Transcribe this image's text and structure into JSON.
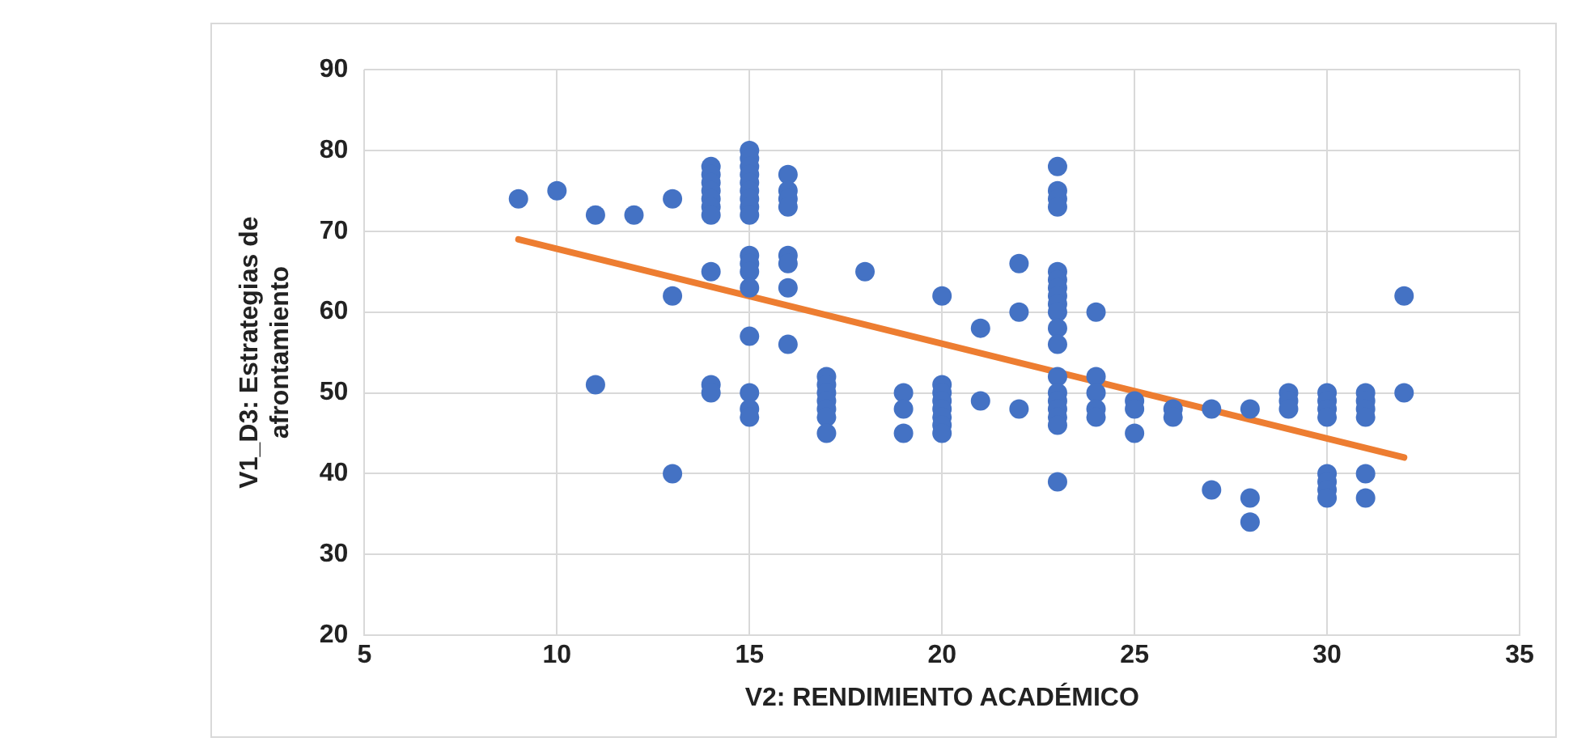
{
  "chart_data": {
    "type": "scatter",
    "xlabel": "V2: RENDIMIENTO ACADÉMICO",
    "ylabel": "V1_D3: Estrategias de afrontamiento",
    "xlim": [
      5,
      35
    ],
    "xticks": [
      5,
      10,
      15,
      20,
      25,
      30,
      35
    ],
    "ylim": [
      20,
      90
    ],
    "yticks": [
      20,
      30,
      40,
      50,
      60,
      70,
      80,
      90
    ],
    "grid": true,
    "legend": false,
    "marker": "circle",
    "series": [
      {
        "color": "#4472c4",
        "x": [
          9,
          10,
          11,
          11,
          12,
          13,
          13,
          13,
          14,
          14,
          14,
          14,
          14,
          14,
          14,
          14,
          14,
          14,
          15,
          15,
          15,
          15,
          15,
          15,
          15,
          15,
          15,
          15,
          15,
          15,
          15,
          15,
          15,
          15,
          15,
          16,
          16,
          16,
          16,
          16,
          16,
          16,
          16,
          17,
          17,
          17,
          17,
          17,
          17,
          17,
          18,
          19,
          19,
          19,
          20,
          20,
          20,
          20,
          20,
          20,
          20,
          20,
          21,
          21,
          22,
          22,
          22,
          23,
          23,
          23,
          23,
          23,
          23,
          23,
          23,
          23,
          23,
          23,
          23,
          23,
          23,
          23,
          23,
          23,
          23,
          23,
          24,
          24,
          24,
          24,
          24,
          25,
          25,
          25,
          26,
          26,
          27,
          27,
          28,
          28,
          28,
          29,
          29,
          29,
          30,
          30,
          30,
          30,
          30,
          30,
          30,
          30,
          31,
          31,
          31,
          31,
          31,
          31,
          32,
          32
        ],
        "values": [
          74,
          75,
          72,
          51,
          72,
          74,
          62,
          40,
          78,
          77,
          76,
          75,
          74,
          73,
          72,
          65,
          51,
          50,
          80,
          79,
          78,
          77,
          76,
          75,
          74,
          73,
          72,
          67,
          66,
          65,
          63,
          57,
          50,
          48,
          47,
          77,
          75,
          74,
          73,
          67,
          66,
          63,
          56,
          52,
          51,
          50,
          49,
          48,
          47,
          45,
          65,
          50,
          48,
          45,
          62,
          51,
          50,
          49,
          48,
          47,
          46,
          45,
          58,
          49,
          66,
          60,
          48,
          78,
          75,
          74,
          73,
          65,
          64,
          63,
          62,
          61,
          60,
          58,
          56,
          52,
          50,
          49,
          48,
          47,
          46,
          39,
          60,
          52,
          50,
          48,
          47,
          49,
          48,
          45,
          48,
          47,
          48,
          38,
          48,
          37,
          34,
          50,
          49,
          48,
          50,
          49,
          48,
          47,
          40,
          39,
          38,
          37,
          50,
          49,
          48,
          47,
          40,
          37,
          62,
          50
        ]
      },
      {
        "type": "line",
        "color": "#ed7d31",
        "marker": "none",
        "x": [
          9,
          32
        ],
        "values": [
          69,
          42
        ]
      }
    ]
  }
}
